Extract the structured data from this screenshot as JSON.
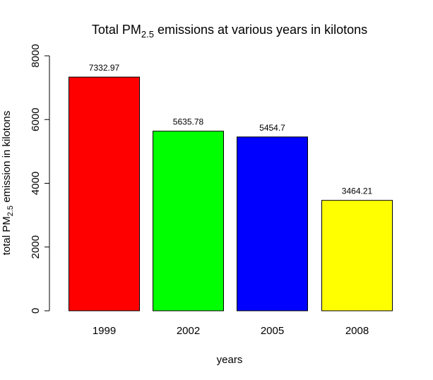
{
  "chart_data": {
    "type": "bar",
    "title": {
      "before": "Total PM",
      "sub": "2.5",
      "after": " emissions at various years in kilotons"
    },
    "xlabel": "years",
    "ylabel": {
      "before": "total PM",
      "sub": "2.5",
      "after": " emission in kilotons"
    },
    "categories": [
      "1999",
      "2002",
      "2005",
      "2008"
    ],
    "values": [
      7332.97,
      5635.78,
      5454.7,
      3464.21
    ],
    "data_labels": [
      "7332.97",
      "5635.78",
      "5454.7",
      "3464.21"
    ],
    "colors": [
      "#ff0000",
      "#00ff00",
      "#0000ff",
      "#ffff00"
    ],
    "ylim": [
      0,
      8000
    ],
    "yticks": [
      0,
      2000,
      4000,
      6000,
      8000
    ],
    "ytick_labels": [
      "0",
      "2000",
      "4000",
      "6000",
      "8000"
    ],
    "grid": false,
    "legend": "none"
  }
}
